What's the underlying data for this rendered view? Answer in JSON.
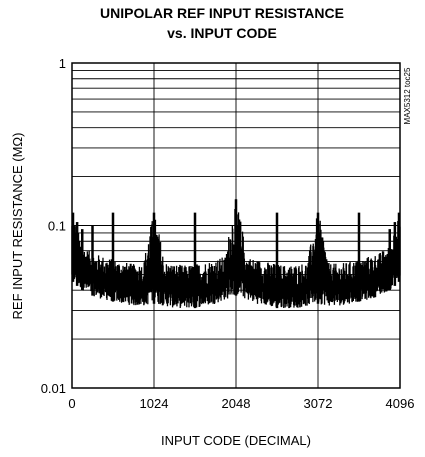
{
  "chart_data": {
    "type": "line",
    "title_line1": "UNIPOLAR REF INPUT RESISTANCE",
    "title_line2": "vs. INPUT CODE",
    "xlabel": "INPUT CODE (DECIMAL)",
    "ylabel": "REF INPUT RESISTANCE (MΩ)",
    "figure_code": "MAX5312 toc25",
    "x_ticks": [
      "0",
      "1024",
      "2048",
      "3072",
      "4096"
    ],
    "y_ticks": [
      "1",
      "0.1",
      "0.01"
    ],
    "xlim": [
      0,
      4096
    ],
    "ylim": [
      0.01,
      1
    ],
    "y_scale": "log",
    "grid": true,
    "series": [
      {
        "x": [
          0,
          128,
          256,
          384,
          512,
          640,
          768,
          896,
          1024,
          1152,
          1280,
          1408,
          1536,
          1664,
          1792,
          1920,
          2048,
          2176,
          2304,
          2432,
          2560,
          2688,
          2816,
          2944,
          3072,
          3200,
          3328,
          3456,
          3584,
          3712,
          3840,
          3968,
          4096
        ],
        "upper": [
          0.12,
          0.075,
          0.068,
          0.065,
          0.062,
          0.06,
          0.058,
          0.059,
          0.12,
          0.06,
          0.058,
          0.057,
          0.058,
          0.06,
          0.062,
          0.065,
          0.145,
          0.065,
          0.062,
          0.06,
          0.058,
          0.057,
          0.058,
          0.06,
          0.12,
          0.059,
          0.058,
          0.06,
          0.062,
          0.065,
          0.068,
          0.075,
          0.12
        ],
        "lower": [
          0.045,
          0.04,
          0.037,
          0.035,
          0.034,
          0.033,
          0.032,
          0.032,
          0.033,
          0.032,
          0.031,
          0.031,
          0.031,
          0.032,
          0.033,
          0.035,
          0.037,
          0.035,
          0.033,
          0.032,
          0.031,
          0.031,
          0.031,
          0.032,
          0.033,
          0.032,
          0.032,
          0.033,
          0.034,
          0.035,
          0.037,
          0.04,
          0.045
        ],
        "spikes": [
          {
            "x": 0,
            "y": 0.12
          },
          {
            "x": 64,
            "y": 0.105
          },
          {
            "x": 128,
            "y": 0.095
          },
          {
            "x": 256,
            "y": 0.1
          },
          {
            "x": 512,
            "y": 0.12
          },
          {
            "x": 1024,
            "y": 0.12
          },
          {
            "x": 1536,
            "y": 0.12
          },
          {
            "x": 2048,
            "y": 0.145
          },
          {
            "x": 2560,
            "y": 0.12
          },
          {
            "x": 3072,
            "y": 0.12
          },
          {
            "x": 3584,
            "y": 0.12
          },
          {
            "x": 3968,
            "y": 0.095
          },
          {
            "x": 4032,
            "y": 0.105
          },
          {
            "x": 4096,
            "y": 0.12
          }
        ]
      }
    ]
  }
}
